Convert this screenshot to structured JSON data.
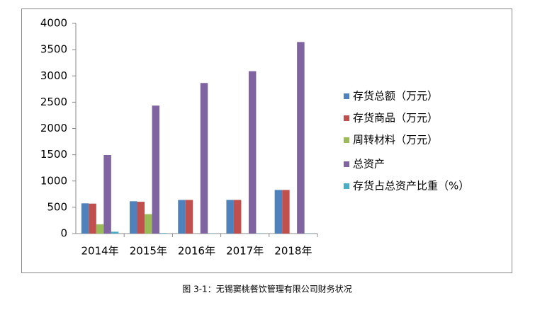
{
  "chart_data": {
    "type": "bar",
    "categories": [
      "2014年",
      "2015年",
      "2016年",
      "2017年",
      "2018年"
    ],
    "series": [
      {
        "name": "存货总额（万元）",
        "color": "#4f81bd",
        "values": [
          575,
          615,
          640,
          640,
          830
        ]
      },
      {
        "name": "存货商品（万元）",
        "color": "#c0504d",
        "values": [
          570,
          605,
          640,
          640,
          830
        ]
      },
      {
        "name": "周转材料（万元）",
        "color": "#9bbb59",
        "values": [
          175,
          370,
          0,
          0,
          0
        ]
      },
      {
        "name": "总资产",
        "color": "#8064a2",
        "values": [
          1495,
          2435,
          2865,
          3090,
          3645
        ]
      },
      {
        "name": "存货占总资产比重（%）",
        "color": "#4bacc6",
        "values": [
          35,
          10,
          5,
          5,
          5
        ]
      }
    ],
    "ylim": [
      0,
      4000
    ],
    "yticks": [
      0,
      500,
      1000,
      1500,
      2000,
      2500,
      3000,
      3500,
      4000
    ],
    "grid": false,
    "legend": "right"
  },
  "caption": "图 3-1：无锡窦桃餐饮管理有限公司财务状况"
}
